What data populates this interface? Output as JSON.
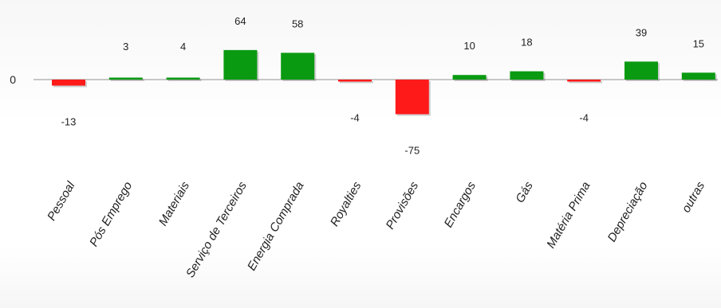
{
  "chart_data": {
    "type": "bar",
    "title": "",
    "xlabel": "",
    "ylabel": "",
    "categories": [
      "Pessoal",
      "Pós Emprego",
      "Materiais",
      "Serviço de Terceiros",
      "Energia Comprada",
      "Royalties",
      "Provisões",
      "Encargos",
      "Gás",
      "Matéria Prima",
      "Depreciação",
      "outras"
    ],
    "values": [
      -13,
      3,
      4,
      64,
      58,
      -4,
      -75,
      10,
      18,
      -4,
      39,
      15
    ],
    "value_labels": [
      "-13",
      "3",
      "4",
      "64",
      "58",
      "-4",
      "-75",
      "10",
      "18",
      "-4",
      "39",
      "15"
    ],
    "zero_label": "0",
    "ylim": [
      -75,
      64
    ],
    "grid": false,
    "legend": "none",
    "colors": {
      "positive": "#0a9a12",
      "negative": "#ff1a1a",
      "axis": "#b5b5b5"
    }
  }
}
